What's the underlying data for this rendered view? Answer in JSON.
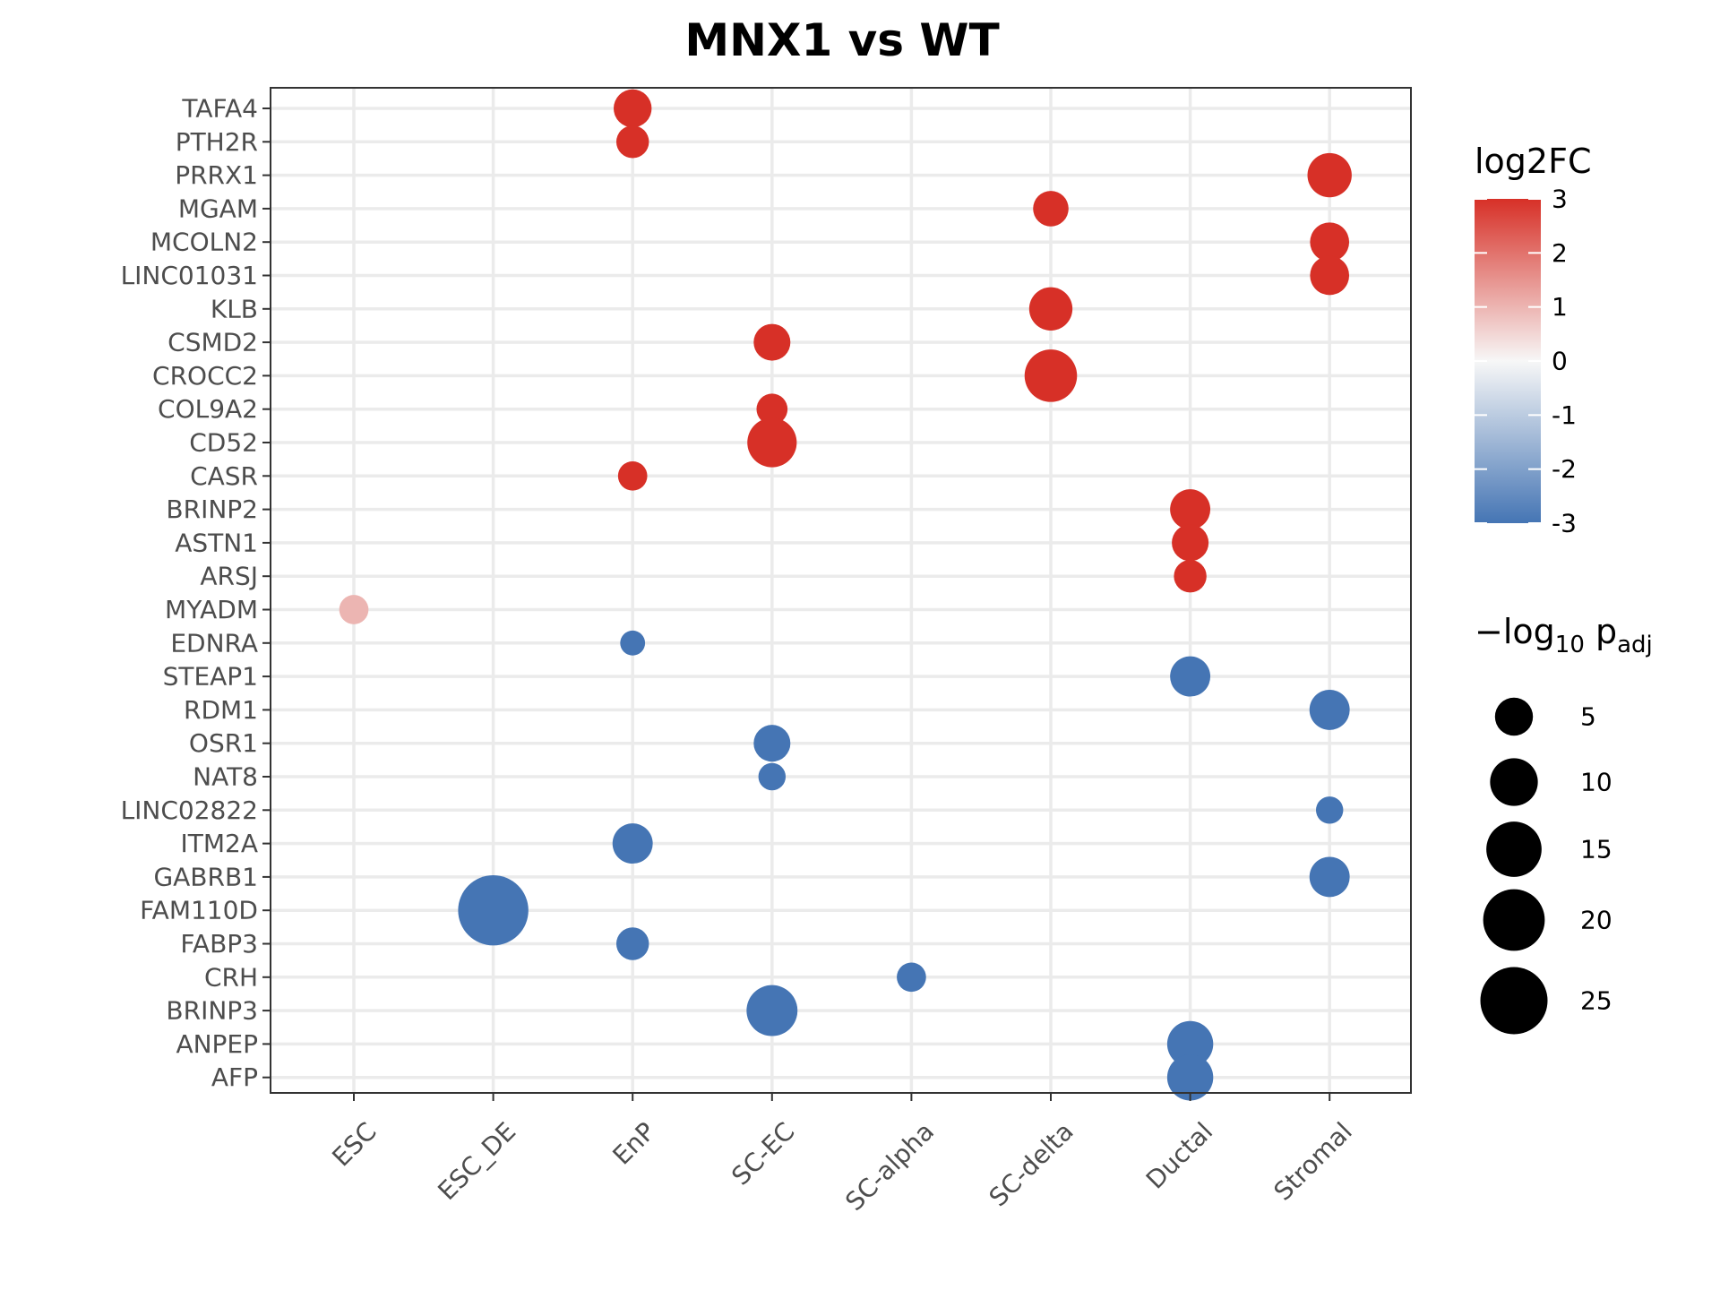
{
  "chart_data": {
    "type": "scatter",
    "title": "MNX1 vs WT",
    "xlabel": "",
    "ylabel": "",
    "x_categories": [
      "ESC",
      "ESC_DE",
      "EnP",
      "SC-EC",
      "SC-alpha",
      "SC-delta",
      "Ductal",
      "Stromal"
    ],
    "y_categories": [
      "TAFA4",
      "PTH2R",
      "PRRX1",
      "MGAM",
      "MCOLN2",
      "LINC01031",
      "KLB",
      "CSMD2",
      "CROCC2",
      "COL9A2",
      "CD52",
      "CASR",
      "BRINP2",
      "ASTN1",
      "ARSJ",
      "MYADM",
      "EDNRA",
      "STEAP1",
      "RDM1",
      "OSR1",
      "NAT8",
      "LINC02822",
      "ITM2A",
      "GABRB1",
      "FAM110D",
      "FABP3",
      "CRH",
      "BRINP3",
      "ANPEP",
      "AFP"
    ],
    "grid": true,
    "points": [
      {
        "gene": "TAFA4",
        "cell": "EnP",
        "log2FC": 3,
        "neglog10_padj": 5
      },
      {
        "gene": "PTH2R",
        "cell": "EnP",
        "log2FC": 3,
        "neglog10_padj": 3
      },
      {
        "gene": "PRRX1",
        "cell": "Stromal",
        "log2FC": 3,
        "neglog10_padj": 8
      },
      {
        "gene": "MGAM",
        "cell": "SC-delta",
        "log2FC": 3,
        "neglog10_padj": 4
      },
      {
        "gene": "MCOLN2",
        "cell": "Stromal",
        "log2FC": 3,
        "neglog10_padj": 5.5
      },
      {
        "gene": "LINC01031",
        "cell": "Stromal",
        "log2FC": 3,
        "neglog10_padj": 5.5
      },
      {
        "gene": "KLB",
        "cell": "SC-delta",
        "log2FC": 3,
        "neglog10_padj": 7.5
      },
      {
        "gene": "CSMD2",
        "cell": "SC-EC",
        "log2FC": 3,
        "neglog10_padj": 4.5
      },
      {
        "gene": "CROCC2",
        "cell": "SC-delta",
        "log2FC": 3,
        "neglog10_padj": 13
      },
      {
        "gene": "COL9A2",
        "cell": "SC-EC",
        "log2FC": 3,
        "neglog10_padj": 2.5
      },
      {
        "gene": "CD52",
        "cell": "SC-EC",
        "log2FC": 3,
        "neglog10_padj": 11
      },
      {
        "gene": "CASR",
        "cell": "EnP",
        "log2FC": 3,
        "neglog10_padj": 2
      },
      {
        "gene": "BRINP2",
        "cell": "Ductal",
        "log2FC": 3,
        "neglog10_padj": 6
      },
      {
        "gene": "ASTN1",
        "cell": "Ductal",
        "log2FC": 3,
        "neglog10_padj": 4.5
      },
      {
        "gene": "ARSJ",
        "cell": "Ductal",
        "log2FC": 3,
        "neglog10_padj": 3
      },
      {
        "gene": "MYADM",
        "cell": "ESC",
        "log2FC": 1,
        "neglog10_padj": 2
      },
      {
        "gene": "EDNRA",
        "cell": "EnP",
        "log2FC": -3,
        "neglog10_padj": 1
      },
      {
        "gene": "STEAP1",
        "cell": "Ductal",
        "log2FC": -3,
        "neglog10_padj": 6
      },
      {
        "gene": "RDM1",
        "cell": "Stromal",
        "log2FC": -3,
        "neglog10_padj": 6
      },
      {
        "gene": "OSR1",
        "cell": "SC-EC",
        "log2FC": -3,
        "neglog10_padj": 4.5
      },
      {
        "gene": "NAT8",
        "cell": "SC-EC",
        "log2FC": -3,
        "neglog10_padj": 1.5
      },
      {
        "gene": "LINC02822",
        "cell": "Stromal",
        "log2FC": -3,
        "neglog10_padj": 1.5
      },
      {
        "gene": "ITM2A",
        "cell": "EnP",
        "log2FC": -3,
        "neglog10_padj": 6
      },
      {
        "gene": "GABRB1",
        "cell": "Stromal",
        "log2FC": -3,
        "neglog10_padj": 6
      },
      {
        "gene": "FAM110D",
        "cell": "ESC_DE",
        "log2FC": -3,
        "neglog10_padj": 28
      },
      {
        "gene": "FABP3",
        "cell": "EnP",
        "log2FC": -3,
        "neglog10_padj": 3
      },
      {
        "gene": "CRH",
        "cell": "SC-alpha",
        "log2FC": -3,
        "neglog10_padj": 2
      },
      {
        "gene": "BRINP3",
        "cell": "SC-EC",
        "log2FC": -3,
        "neglog10_padj": 12
      },
      {
        "gene": "ANPEP",
        "cell": "Ductal",
        "log2FC": -3,
        "neglog10_padj": 9
      },
      {
        "gene": "AFP",
        "cell": "Ductal",
        "log2FC": -3,
        "neglog10_padj": 9
      }
    ],
    "color_legend": {
      "title": "log2FC",
      "ticks": [
        3,
        2,
        1,
        0,
        -1,
        -2,
        -3
      ],
      "tick_labels": [
        "3",
        "2",
        "1",
        "0",
        "-1",
        "-2",
        "-3"
      ],
      "range": [
        -3,
        3
      ],
      "colors": {
        "low": "#4575b4",
        "mid": "#f7f7f7",
        "high": "#d73027"
      }
    },
    "size_legend": {
      "title_prefix": "−log",
      "title_subscript": "10",
      "title_main": " p",
      "title_main_subscript": "adj",
      "values": [
        5,
        10,
        15,
        20,
        25
      ],
      "labels": [
        "5",
        "10",
        "15",
        "20",
        "25"
      ]
    }
  }
}
